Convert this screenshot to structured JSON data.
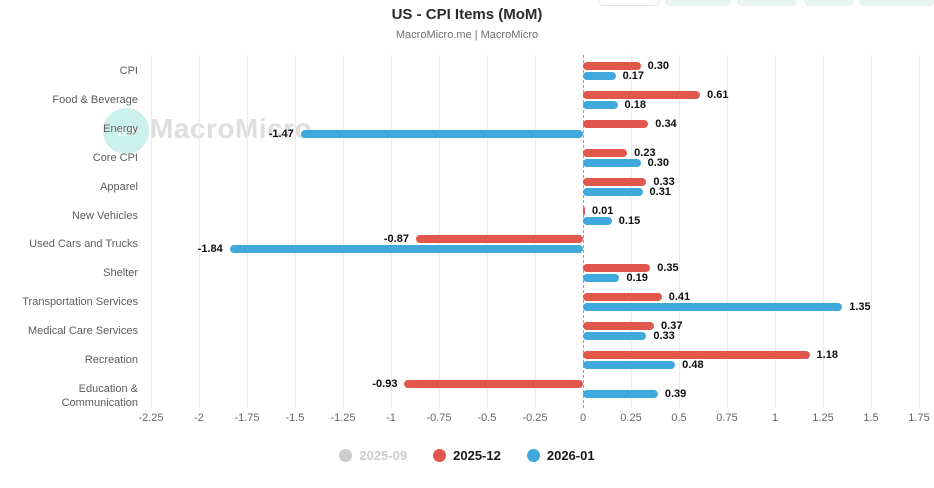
{
  "header": {
    "title": "US - CPI Items (MoM)",
    "subtitle": "MacroMicro.me | MacroMicro"
  },
  "watermark": {
    "text": "MacroMicro",
    "logo_glyph": "∧∧"
  },
  "toolbar": {
    "buttons": [
      {
        "style": "outline"
      },
      {
        "style": "teal"
      },
      {
        "style": "teal"
      },
      {
        "style": "teal"
      },
      {
        "style": "teal"
      }
    ]
  },
  "colors": {
    "red": "#e2574b",
    "blue": "#3fa9dc",
    "disabled": "#cccccc",
    "grid": "#ebebeb",
    "zero_line": "#9e9e9e"
  },
  "chart_data": {
    "type": "bar",
    "orientation": "horizontal",
    "title": "US - CPI Items (MoM)",
    "subtitle": "MacroMicro.me | MacroMicro",
    "categories": [
      "CPI",
      "Food & Beverage",
      "Energy",
      "Core CPI",
      "Apparel",
      "New Vehicles",
      "Used Cars and Trucks",
      "Shelter",
      "Transportation Services",
      "Medical Care Services",
      "Recreation",
      "Education & Communication"
    ],
    "series": [
      {
        "name": "2025-09",
        "color": "#cccccc",
        "disabled": true,
        "values": null
      },
      {
        "name": "2025-12",
        "color": "#e2574b",
        "disabled": false,
        "values": [
          0.3,
          0.61,
          0.34,
          0.23,
          0.33,
          0.01,
          -0.87,
          0.35,
          0.41,
          0.37,
          1.18,
          -0.93
        ]
      },
      {
        "name": "2026-01",
        "color": "#3fa9dc",
        "disabled": false,
        "values": [
          0.17,
          0.18,
          -1.47,
          0.3,
          0.31,
          0.15,
          -1.84,
          0.19,
          1.35,
          0.33,
          0.48,
          0.39
        ]
      }
    ],
    "x_ticks": [
      "-2.25",
      "-2",
      "-1.75",
      "-1.5",
      "-1.25",
      "-1",
      "-0.75",
      "-0.5",
      "-0.25",
      "0",
      "0.25",
      "0.5",
      "0.75",
      "1",
      "1.25",
      "1.5",
      "1.75"
    ],
    "xlim": [
      -2.27,
      1.8
    ],
    "value_label_decimals": 2,
    "grid": true,
    "legend_position": "bottom"
  }
}
